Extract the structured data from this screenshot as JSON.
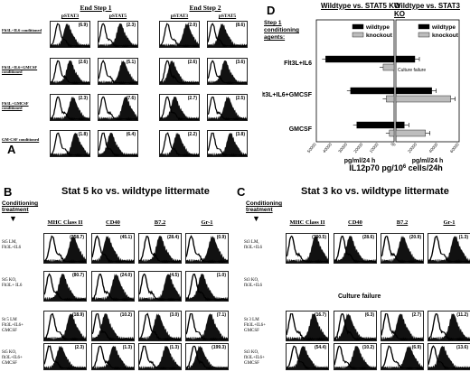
{
  "panelA": {
    "label": "A",
    "group1": "End Step 1",
    "group2": "End Step 2",
    "cols": [
      "pSTAT3",
      "pSTAT5",
      "pSTAT3",
      "pSTAT5"
    ],
    "rows": [
      {
        "label": "Flt3L+IL6 conditioned",
        "values": [
          "(6.9)",
          "(2.3)",
          "(2.0)",
          "(8.6)"
        ]
      },
      {
        "label": "Flt3L+IL6+GMCSF conditioned",
        "values": [
          "(2.6)",
          "(5.1)",
          "(2.6)",
          "(3.6)"
        ]
      },
      {
        "label": "Flt3L+GMCSF conditioned",
        "values": [
          "(2.3)",
          "(7.6)",
          "(2.7)",
          "(2.5)"
        ]
      },
      {
        "label": "GM-CSF conditioned",
        "values": [
          "(1.8)",
          "(6.4)",
          "(2.2)",
          "(3.8)"
        ]
      }
    ]
  },
  "panelD": {
    "label": "D",
    "step_label": "Step 1 conditioning agents:",
    "title_left": "Wildtype vs. STAT5 KO",
    "title_right": "Wildtype vs. STAT3 KO",
    "legend": [
      "wildtype",
      "knockout"
    ],
    "culture_failure": "Culture failure",
    "xlabel_left": "pg/ml/24 h",
    "xlabel_right": "pg/ml/24 h",
    "xlabel_main": "IL12p70 pg/10",
    "xlabel_sup": "6",
    "xlabel_tail": " cells/24h",
    "ticks_left": [
      "50000",
      "40000",
      "30000",
      "20000",
      "10000",
      "0"
    ],
    "ticks_right": [
      "0",
      "20000",
      "40000",
      "60000"
    ]
  },
  "chart_data": {
    "type": "bar",
    "title": "IL12p70 pg/10^6 cells/24h",
    "categories": [
      "Flt3L+IL6",
      "Flt3L+IL6+GMCSF",
      "GMCSF"
    ],
    "charts": [
      {
        "name": "Wildtype vs. STAT5 KO",
        "xlim": [
          50000,
          0
        ],
        "series": [
          {
            "name": "wildtype",
            "values": [
              44000,
              28000,
              24000
            ]
          },
          {
            "name": "knockout",
            "values": [
              7000,
              5000,
              3000
            ]
          }
        ]
      },
      {
        "name": "Wildtype vs. STAT3 KO",
        "xlim": [
          0,
          60000
        ],
        "series": [
          {
            "name": "wildtype",
            "values": [
              18000,
              34000,
              8000
            ]
          },
          {
            "name": "knockout",
            "values": [
              null,
              52000,
              28000
            ]
          }
        ]
      }
    ]
  },
  "panelB": {
    "label": "B",
    "title": "Stat 5 ko vs. wildtype littermate",
    "cond": [
      "Conditioning",
      "treatment"
    ],
    "cols": [
      "MHC Class II",
      "CD40",
      "B7.2",
      "Gr-1"
    ],
    "rows": [
      {
        "label": [
          "St5 LM,",
          "Flt3L+IL6"
        ],
        "values": [
          "(358.7)",
          "(45.1)",
          "(28.4)",
          "(0.9)"
        ]
      },
      {
        "label": [
          "St5 KO,",
          "Flt3L+ IL6"
        ],
        "values": [
          "(80.7)",
          "(24.0)",
          "(4.5)",
          "(1.0)"
        ]
      },
      {
        "label": [
          "St 5 LM",
          "Flt3L+IL6+",
          "GMCSF"
        ],
        "values": [
          "(18.9)",
          "(10.2)",
          "(3.0)",
          "(7.1)"
        ]
      },
      {
        "label": [
          "St5 KO,",
          "flt3L+IL6+",
          "GMCSF"
        ],
        "values": [
          "(2.3)",
          "(1.3)",
          "(1.3)",
          "(199.3)"
        ]
      }
    ]
  },
  "panelC": {
    "label": "C",
    "title": "Stat 3 ko vs. wildtype littermate",
    "cond": [
      "Conditioning",
      "treatment"
    ],
    "cols": [
      "MHC Class II",
      "CD40",
      "B7.2",
      "Gr-1"
    ],
    "failure": "Culture failure",
    "rows": [
      {
        "label": [
          "St3 LM,",
          "flt3L+IL6"
        ],
        "values": [
          "(700.5)",
          "(28.6)",
          "(20.9)",
          "(1.3)"
        ]
      },
      {
        "label": [
          "St3 KO,",
          "flt3L+IL6"
        ],
        "values": []
      },
      {
        "label": [
          "St 3 LM",
          "Flt3L+IL6+",
          "GMCSF"
        ],
        "values": [
          "(16.7)",
          "(6.3)",
          "(2.7)",
          "(11.2)"
        ]
      },
      {
        "label": [
          "St3 KO,",
          "flt3L+IL6+",
          "GMCSF"
        ],
        "values": [
          "(54.4)",
          "(10.2)",
          "(6.9)",
          "(13.6)"
        ]
      }
    ]
  }
}
